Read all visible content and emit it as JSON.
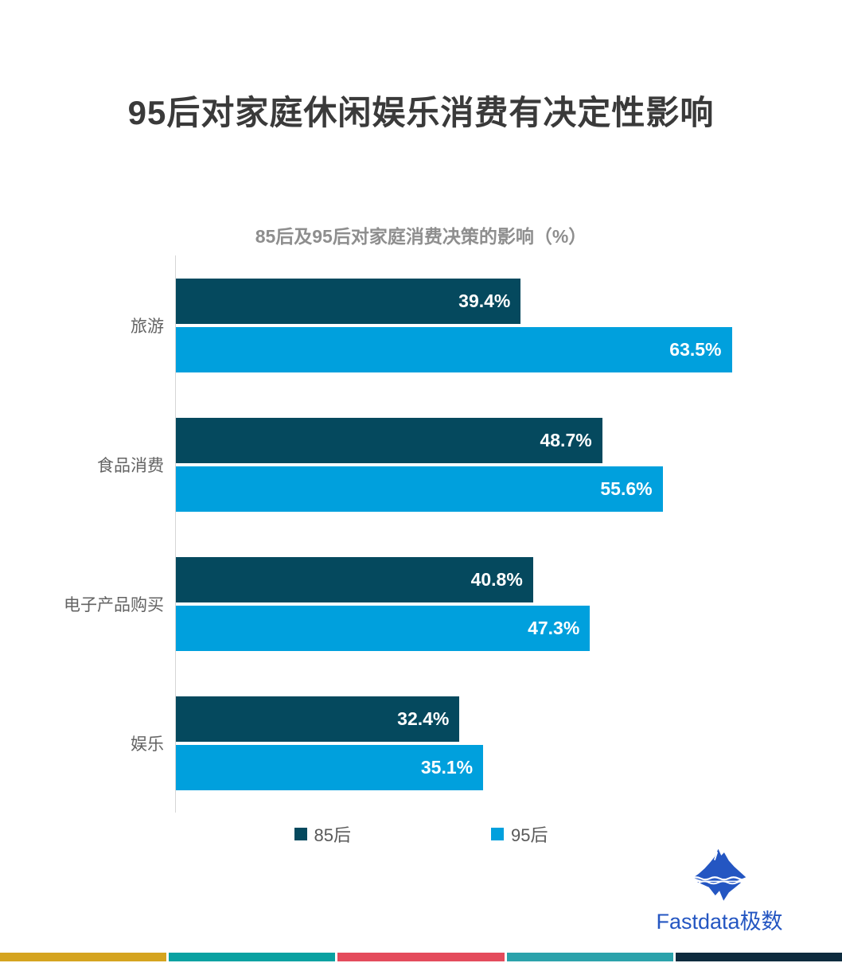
{
  "title": "95后对家庭休闲娱乐消费有决定性影响",
  "chart_data": {
    "type": "bar",
    "orientation": "horizontal",
    "title": "85后及95后对家庭消费决策的影响（%）",
    "categories": [
      "旅游",
      "食品消费",
      "电子产品购买",
      "娱乐"
    ],
    "series": [
      {
        "name": "85后",
        "color": "#05495e",
        "values": [
          39.4,
          48.7,
          40.8,
          32.4
        ]
      },
      {
        "name": "95后",
        "color": "#00a0dd",
        "values": [
          63.5,
          55.6,
          47.3,
          35.1
        ]
      }
    ],
    "value_suffix": "%",
    "xlim": [
      0,
      70
    ],
    "grid": false,
    "legend_position": "bottom",
    "value_labels": "inside-end"
  },
  "legend": [
    {
      "label": "85后",
      "color": "#05495e"
    },
    {
      "label": "95后",
      "color": "#00a0dd"
    }
  ],
  "branding": {
    "logo_text": "Fastdata极数",
    "logo_color": "#2456c2",
    "icon": "iceberg-icon"
  },
  "footer_bar_colors": [
    "#d5a41f",
    "#0aa1a1",
    "#e44b5c",
    "#2ba2ab",
    "#0e2b3e"
  ]
}
